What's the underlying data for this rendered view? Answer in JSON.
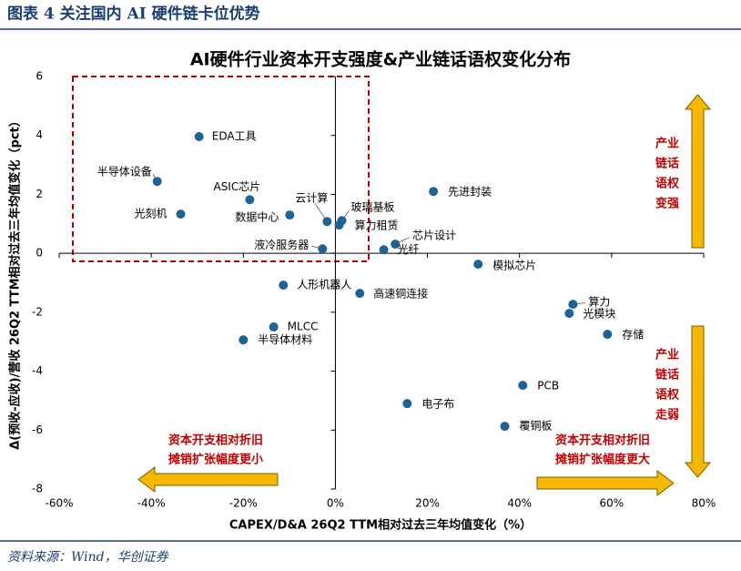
{
  "header": {
    "title": "图表 4 关注国内 AI 硬件链卡位优势"
  },
  "chart_data": {
    "type": "scatter",
    "title": "AI硬件行业资本开支强度&产业链话语权变化分布",
    "x_label": "CAPEX/D&A 26Q2 TTM相对过去三年均值变化（%）",
    "y_label": "Δ(预收-应收)/营收 26Q2 TTM相对过去三年均值变化（pct）",
    "color": "#1d6396",
    "xlim": [
      -60,
      80
    ],
    "xticks": [
      {
        "value": -60,
        "label": "-60%"
      },
      {
        "value": -40,
        "label": "-40%"
      },
      {
        "value": -20,
        "label": "-20%"
      },
      {
        "value": 0,
        "label": "0%"
      },
      {
        "value": 20,
        "label": "20%"
      },
      {
        "value": 40,
        "label": "40%"
      },
      {
        "value": 60,
        "label": "60%"
      },
      {
        "value": 80,
        "label": "80%"
      }
    ],
    "ylim": [
      -8,
      6
    ],
    "yticks": [
      -8,
      -6,
      -4,
      -2,
      0,
      2,
      4,
      6
    ],
    "labels": [
      "EDA工具",
      "半导体设备",
      "ASIC芯片",
      "光刻机",
      "数据中心",
      "云计算",
      "玻璃基板",
      "算力租赁",
      "先进封装",
      "液冷服务器",
      "芯片设计",
      "光纤",
      "模拟芯片",
      "人形机器人",
      "高速铜连接",
      "算力",
      "光模块",
      "MLCC",
      "存储",
      "半导体材料",
      "PCB",
      "电子布",
      "覆铜板"
    ],
    "x": [
      -29.6,
      -38.7,
      -18.6,
      -33.6,
      -9.9,
      -1.8,
      1.4,
      0.8,
      21.3,
      -2.8,
      13.0,
      10.5,
      31.0,
      -11.3,
      5.3,
      51.6,
      50.8,
      -13.4,
      59.1,
      -20.0,
      40.7,
      15.6,
      36.8
    ],
    "y": [
      3.96,
      2.44,
      1.82,
      1.33,
      1.3,
      1.08,
      1.11,
      0.96,
      2.1,
      0.15,
      0.31,
      0.12,
      -0.37,
      -1.08,
      -1.36,
      -1.73,
      -2.04,
      -2.5,
      -2.75,
      -2.94,
      -4.48,
      -5.1,
      -5.87
    ],
    "annotations": {
      "up": [
        "产业",
        "链话",
        "语权",
        "变强"
      ],
      "down": [
        "产业",
        "链话",
        "语权",
        "走弱"
      ],
      "left": [
        "资本开支相对折旧",
        "摊销扩张幅度更小"
      ],
      "right": [
        "资本开支相对折旧",
        "摊销扩张幅度更大"
      ]
    }
  },
  "footer": {
    "source": "资料来源：Wind，华创证券"
  }
}
